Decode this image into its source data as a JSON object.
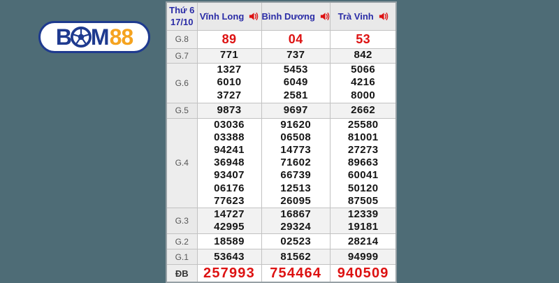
{
  "background_color": "#4e6c76",
  "logo": {
    "name": "BOM88",
    "part_b": "B",
    "part_m": "M",
    "part_88": "88",
    "navy": "#1e3a8f",
    "orange": "#f5a31f"
  },
  "table": {
    "date": {
      "line1": "Thứ 6",
      "line2": "17/10"
    },
    "columns": [
      {
        "label": "Vĩnh Long"
      },
      {
        "label": "Bình Dương"
      },
      {
        "label": "Trà Vinh"
      }
    ],
    "colors": {
      "header_text": "#2a2ca6",
      "highlight_red": "#dd1212",
      "number_black": "#151515"
    },
    "rows": [
      {
        "prize": "G.8",
        "highlight": true,
        "values": [
          [
            "89"
          ],
          [
            "04"
          ],
          [
            "53"
          ]
        ]
      },
      {
        "prize": "G.7",
        "shaded": true,
        "values": [
          [
            "771"
          ],
          [
            "737"
          ],
          [
            "842"
          ]
        ]
      },
      {
        "prize": "G.6",
        "values": [
          [
            "1327",
            "6010",
            "3727"
          ],
          [
            "5453",
            "6049",
            "2581"
          ],
          [
            "5066",
            "4216",
            "8000"
          ]
        ]
      },
      {
        "prize": "G.5",
        "shaded": true,
        "values": [
          [
            "9873"
          ],
          [
            "9697"
          ],
          [
            "2662"
          ]
        ]
      },
      {
        "prize": "G.4",
        "values": [
          [
            "03036",
            "03388",
            "94241",
            "36948",
            "93407",
            "06176",
            "77623"
          ],
          [
            "91620",
            "06508",
            "14773",
            "71602",
            "66739",
            "12513",
            "26095"
          ],
          [
            "25580",
            "81001",
            "27273",
            "89663",
            "60041",
            "50120",
            "87505"
          ]
        ]
      },
      {
        "prize": "G.3",
        "shaded": true,
        "values": [
          [
            "14727",
            "42995"
          ],
          [
            "16867",
            "29324"
          ],
          [
            "12339",
            "19181"
          ]
        ]
      },
      {
        "prize": "G.2",
        "values": [
          [
            "18589"
          ],
          [
            "02523"
          ],
          [
            "28214"
          ]
        ]
      },
      {
        "prize": "G.1",
        "shaded": true,
        "values": [
          [
            "53643"
          ],
          [
            "81562"
          ],
          [
            "94999"
          ]
        ]
      },
      {
        "prize": "ĐB",
        "highlight": true,
        "big": true,
        "values": [
          [
            "257993"
          ],
          [
            "754464"
          ],
          [
            "940509"
          ]
        ]
      }
    ]
  }
}
